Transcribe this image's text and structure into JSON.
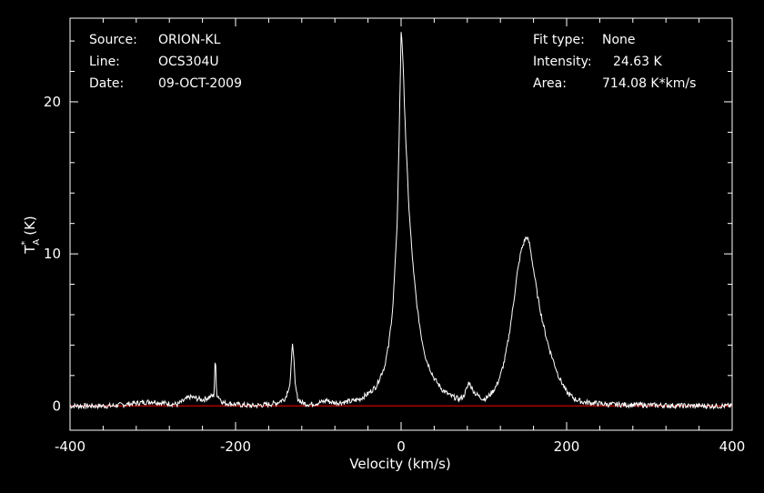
{
  "header": {
    "source_label": "Source:",
    "source_value": "ORION-KL",
    "line_label": "Line:",
    "line_value": "OCS304U",
    "date_label": "Date:",
    "date_value": "09-OCT-2009",
    "fit_label": "Fit type:",
    "fit_value": "None",
    "intensity_label": "Intensity:",
    "intensity_value": "24.63 K",
    "area_label": "Area:",
    "area_value": "714.08 K*km/s"
  },
  "chart_data": {
    "type": "line",
    "xlabel": "Velocity (km/s)",
    "ylabel": "T_A* (K)",
    "xlim": [
      -400,
      400
    ],
    "ylim": [
      -1.6,
      25.5
    ],
    "xticks": [
      -400,
      -200,
      0,
      200,
      400
    ],
    "yticks": [
      0,
      10,
      20
    ],
    "baseline": 0,
    "colors": {
      "spectrum": "#ffffff",
      "baseline": "#cc0000",
      "axes": "#ffffff"
    },
    "series": [
      {
        "x": [
          -400,
          -350,
          -300,
          -290,
          -270,
          -255,
          -240,
          -226,
          -224.5,
          -223,
          -215,
          -200,
          -180,
          -160,
          -150,
          -140,
          -134,
          -131,
          -128,
          -125,
          -120,
          -110,
          -100,
          -92,
          -90,
          -88,
          -80,
          -70,
          -60,
          -50,
          -40,
          -30,
          -20,
          -15,
          -10,
          -5,
          -2,
          0,
          1,
          3,
          6,
          10,
          15,
          20,
          25,
          30,
          40,
          50,
          60,
          70,
          75,
          80,
          82,
          86,
          90,
          95,
          100,
          105,
          110,
          115,
          120,
          125,
          130,
          135,
          140,
          145,
          150,
          152,
          155,
          160,
          165,
          170,
          175,
          180,
          190,
          200,
          210,
          220,
          250,
          300,
          350,
          400
        ],
        "y": [
          0,
          0,
          0.3,
          0.2,
          0.1,
          0.6,
          0.4,
          0.7,
          3.4,
          0.8,
          0.2,
          0.1,
          0,
          0.1,
          0.2,
          0.5,
          1.5,
          4.4,
          1.4,
          0.5,
          0.2,
          0.1,
          0.2,
          0.3,
          0.45,
          0.3,
          0.2,
          0.25,
          0.3,
          0.45,
          0.8,
          1.3,
          2.6,
          4.0,
          6.5,
          11.5,
          18.5,
          24.63,
          24.2,
          21.5,
          17.0,
          12.5,
          8.8,
          6.2,
          4.4,
          3.1,
          1.8,
          1.05,
          0.65,
          0.45,
          0.6,
          1.2,
          1.6,
          1.1,
          0.8,
          0.6,
          0.45,
          0.6,
          0.9,
          1.3,
          2.0,
          3.0,
          4.5,
          6.4,
          8.6,
          10.2,
          11.0,
          11.1,
          10.7,
          9.0,
          7.2,
          5.8,
          4.6,
          3.6,
          2.0,
          0.9,
          0.45,
          0.25,
          0.1,
          0.05,
          0,
          0
        ]
      }
    ]
  }
}
